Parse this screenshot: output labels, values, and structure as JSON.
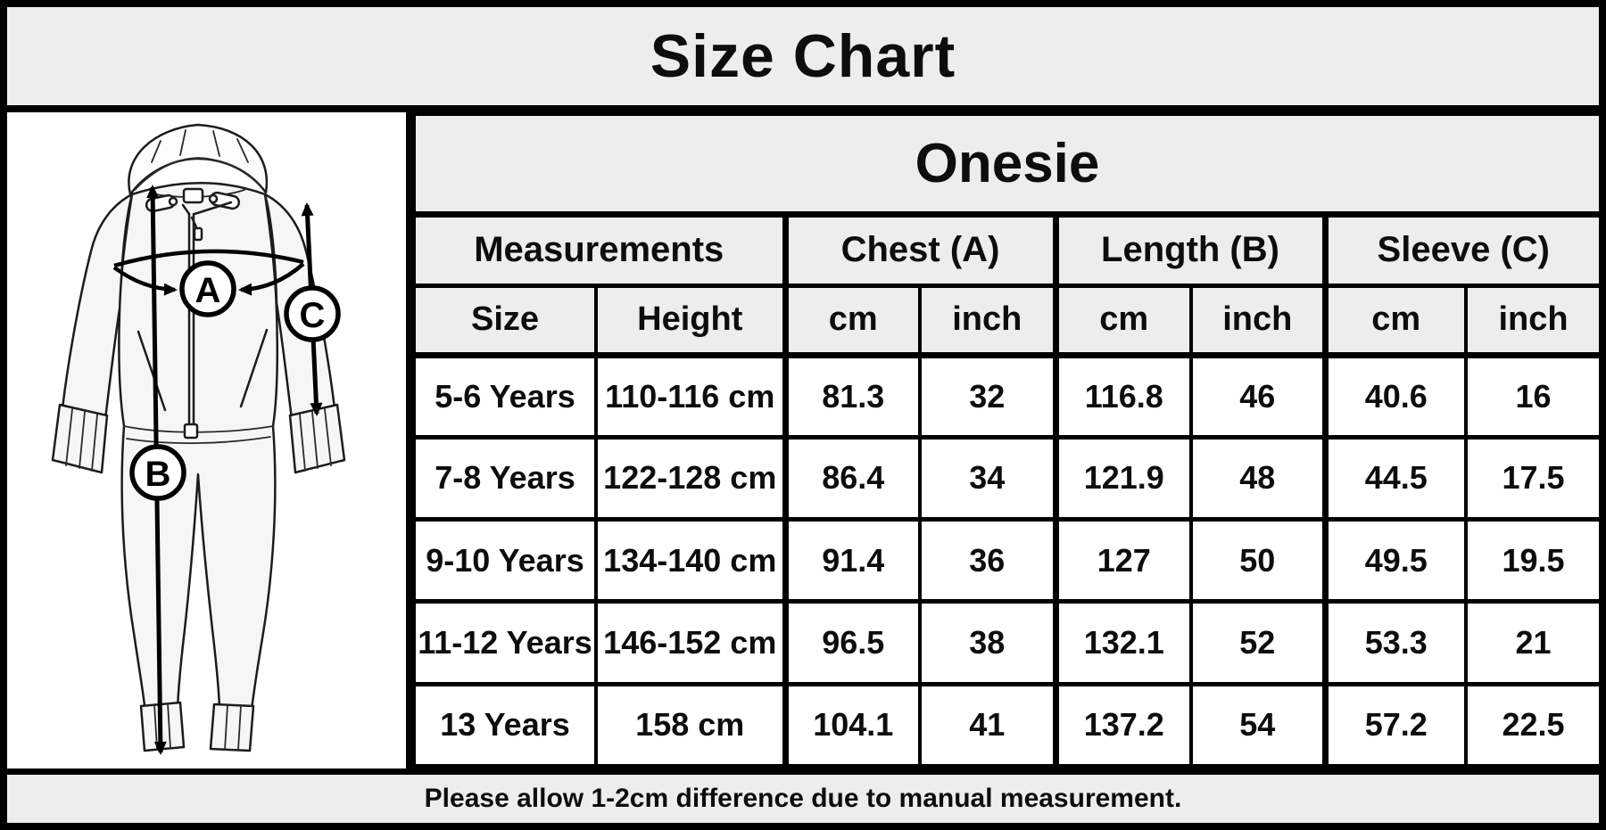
{
  "banner": {
    "title": "Size Chart"
  },
  "diagram": {
    "labels": {
      "chest": "A",
      "length": "B",
      "sleeve": "C"
    }
  },
  "chart_data": {
    "type": "table",
    "title": "Onesie",
    "group_headers": [
      {
        "label": "Measurements",
        "colspan": 2
      },
      {
        "label": "Chest (A)",
        "colspan": 2
      },
      {
        "label": "Length (B)",
        "colspan": 2
      },
      {
        "label": "Sleeve (C)",
        "colspan": 2
      }
    ],
    "columns": [
      "Size",
      "Height",
      "cm",
      "inch",
      "cm",
      "inch",
      "cm",
      "inch"
    ],
    "rows": [
      [
        "5-6 Years",
        "110-116 cm",
        "81.3",
        "32",
        "116.8",
        "46",
        "40.6",
        "16"
      ],
      [
        "7-8 Years",
        "122-128 cm",
        "86.4",
        "34",
        "121.9",
        "48",
        "44.5",
        "17.5"
      ],
      [
        "9-10 Years",
        "134-140 cm",
        "91.4",
        "36",
        "127",
        "50",
        "49.5",
        "19.5"
      ],
      [
        "11-12 Years",
        "146-152 cm",
        "96.5",
        "38",
        "132.1",
        "52",
        "53.3",
        "21"
      ],
      [
        "13 Years",
        "158 cm",
        "104.1",
        "41",
        "137.2",
        "54",
        "57.2",
        "22.5"
      ]
    ]
  },
  "footer": {
    "note": "Please allow 1-2cm difference due to manual measurement."
  },
  "colors": {
    "frame": "#000000",
    "header_gray": "#ededed",
    "cell_white": "#ffffff",
    "text": "#0d0d0d"
  }
}
